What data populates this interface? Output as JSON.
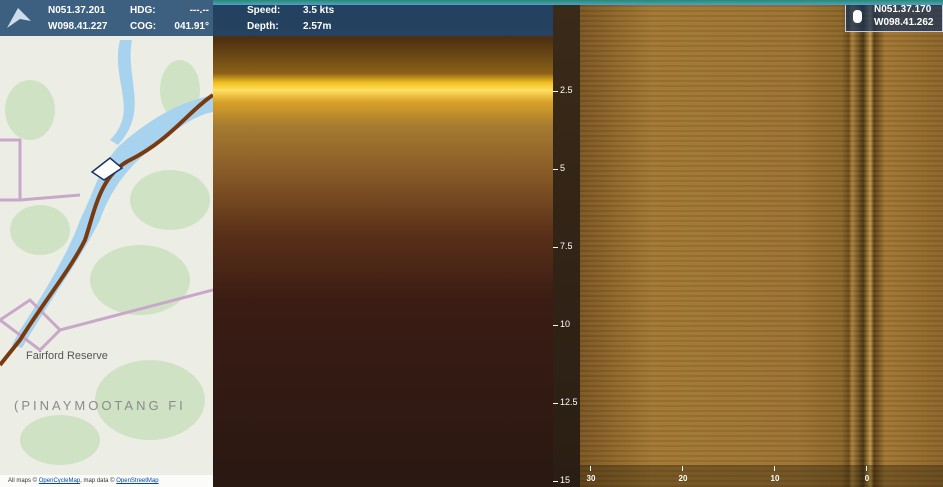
{
  "map": {
    "latitude": "N051.37.201",
    "longitude": "W098.41.227",
    "hdg_label": "HDG:",
    "hdg_value": "---.--",
    "cog_label": "COG:",
    "cog_value": "041.91°",
    "place_labels": [
      "Fairford Reserve",
      "(PINAYMOOTANG FI"
    ],
    "attribution": {
      "prefix": "All maps © ",
      "link1": "OpenCycleMap",
      "middle": ", map data © ",
      "link2": "OpenStreetMap"
    }
  },
  "down_scan": {
    "speed_label": "Speed:",
    "speed_value": "3.5 kts",
    "depth_label": "Depth:",
    "depth_value": "2.57m",
    "depth_ticks": [
      2.5,
      5,
      7.5,
      10,
      12.5,
      15
    ]
  },
  "side_scan": {
    "range_ticks": [
      30,
      20,
      10,
      0
    ],
    "cursor_latitude": "N051.37.170",
    "cursor_longitude": "W098.41.262"
  }
}
